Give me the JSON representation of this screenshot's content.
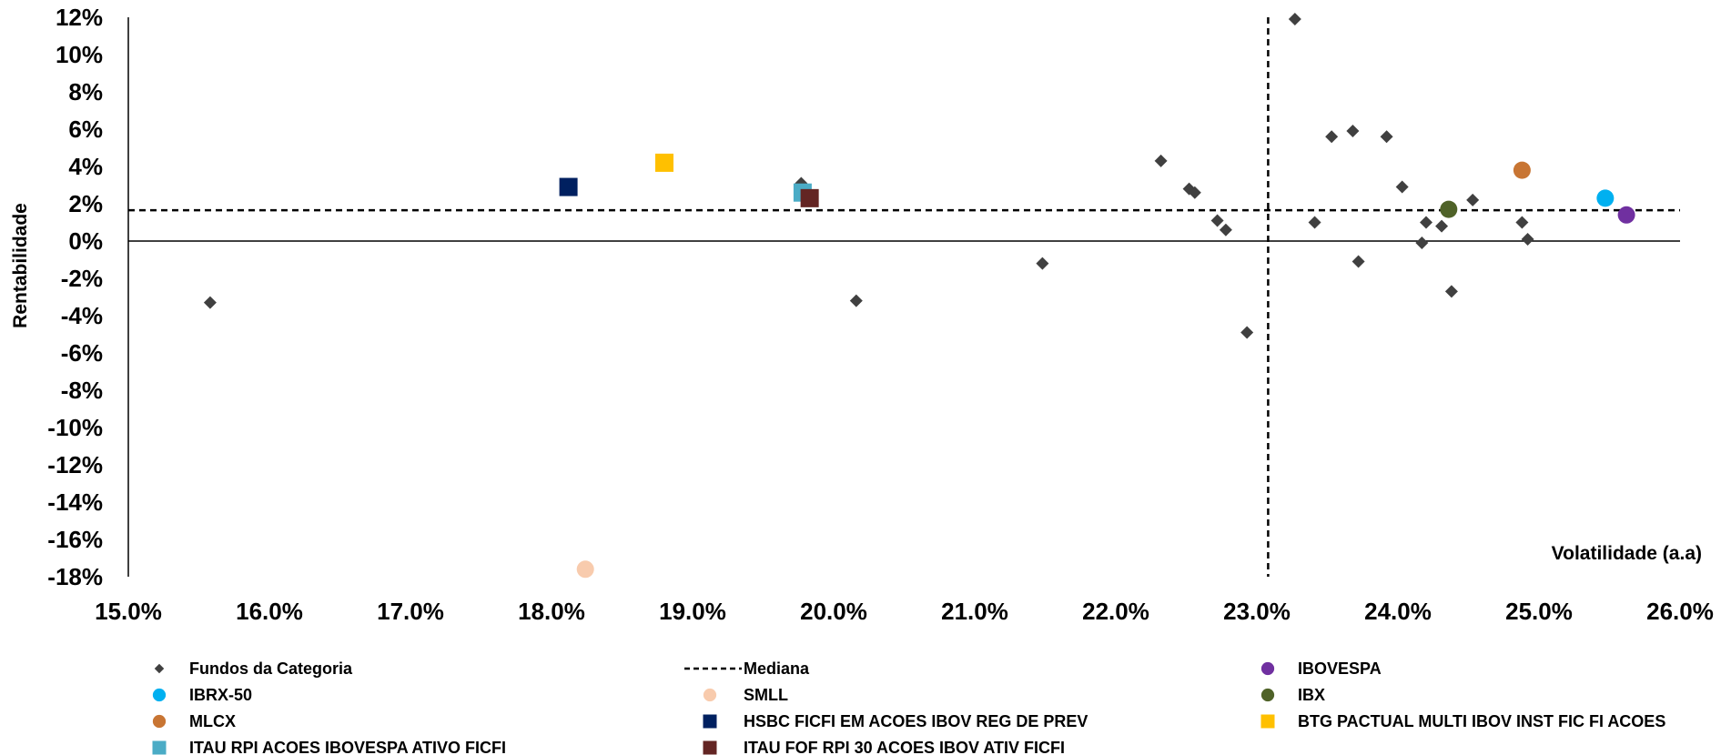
{
  "chart_data": {
    "type": "scatter",
    "xlabel": "Volatilidade (a.a)",
    "ylabel": "Rentabilidade",
    "xlim": [
      15.0,
      26.0
    ],
    "ylim": [
      -18,
      12
    ],
    "x_ticks": [
      15,
      16,
      17,
      18,
      19,
      20,
      21,
      22,
      23,
      24,
      25,
      26
    ],
    "x_tick_labels": [
      "15.0%",
      "16.0%",
      "17.0%",
      "18.0%",
      "19.0%",
      "20.0%",
      "21.0%",
      "22.0%",
      "23.0%",
      "24.0%",
      "25.0%",
      "26.0%"
    ],
    "y_ticks": [
      12,
      10,
      8,
      6,
      4,
      2,
      0,
      -2,
      -4,
      -6,
      -8,
      -10,
      -12,
      -14,
      -16,
      -18
    ],
    "y_tick_labels": [
      "12%",
      "10%",
      "8%",
      "6%",
      "4%",
      "2%",
      "0%",
      "-2%",
      "-4%",
      "-6%",
      "-8%",
      "-10%",
      "-12%",
      "-14%",
      "-16%",
      "-18%"
    ],
    "median": {
      "name": "Mediana",
      "x": 23.08,
      "y": 1.65,
      "color": "#000000"
    },
    "series": [
      {
        "name": "Fundos da Categoria",
        "marker": "diamond",
        "color": "#404040",
        "points": [
          [
            15.58,
            -3.3
          ],
          [
            19.77,
            3.1
          ],
          [
            20.16,
            -3.2
          ],
          [
            21.48,
            -1.2
          ],
          [
            22.32,
            4.3
          ],
          [
            22.52,
            2.8
          ],
          [
            22.56,
            2.6
          ],
          [
            22.72,
            1.1
          ],
          [
            22.78,
            0.6
          ],
          [
            22.93,
            -4.9
          ],
          [
            23.27,
            11.9
          ],
          [
            23.41,
            1.0
          ],
          [
            23.53,
            5.6
          ],
          [
            23.68,
            5.9
          ],
          [
            23.72,
            -1.1
          ],
          [
            23.92,
            5.6
          ],
          [
            24.03,
            2.9
          ],
          [
            24.17,
            -0.1
          ],
          [
            24.2,
            1.0
          ],
          [
            24.31,
            0.8
          ],
          [
            24.38,
            -2.7
          ],
          [
            24.53,
            2.2
          ],
          [
            24.88,
            1.0
          ],
          [
            24.92,
            0.1
          ]
        ]
      },
      {
        "name": "IBOVESPA",
        "marker": "circle",
        "color": "#7030A0",
        "points": [
          [
            25.62,
            1.4
          ]
        ]
      },
      {
        "name": "IBRX-50",
        "marker": "circle",
        "color": "#00B0F0",
        "points": [
          [
            25.47,
            2.3
          ]
        ]
      },
      {
        "name": "SMLL",
        "marker": "circle",
        "color": "#F8CBAD",
        "points": [
          [
            18.24,
            -17.6
          ]
        ]
      },
      {
        "name": "IBX",
        "marker": "circle",
        "color": "#4F6228",
        "points": [
          [
            24.36,
            1.7
          ]
        ]
      },
      {
        "name": "MLCX",
        "marker": "circle",
        "color": "#C87533",
        "points": [
          [
            24.88,
            3.8
          ]
        ]
      },
      {
        "name": "HSBC FICFI EM ACOES IBOV REG DE PREV",
        "marker": "square",
        "color": "#002060",
        "points": [
          [
            18.12,
            2.9
          ]
        ]
      },
      {
        "name": "BTG PACTUAL MULTI IBOV INST FIC FI ACOES",
        "marker": "square",
        "color": "#FFC000",
        "points": [
          [
            18.8,
            4.2
          ]
        ]
      },
      {
        "name": "ITAU RPI ACOES IBOVESPA ATIVO FICFI",
        "marker": "square",
        "color": "#4BACC6",
        "points": [
          [
            19.78,
            2.6
          ]
        ]
      },
      {
        "name": "ITAU FOF RPI 30 ACOES IBOV ATIV FICFI",
        "marker": "square",
        "color": "#632523",
        "points": [
          [
            19.83,
            2.3
          ]
        ]
      }
    ],
    "legend": {
      "placement": "bottom",
      "entries": [
        {
          "label": "Fundos da Categoria",
          "marker": "diamond",
          "color": "#404040"
        },
        {
          "label": "Mediana",
          "marker": "dash",
          "color": "#000000"
        },
        {
          "label": "IBOVESPA",
          "marker": "circle",
          "color": "#7030A0"
        },
        {
          "label": "IBRX-50",
          "marker": "circle",
          "color": "#00B0F0"
        },
        {
          "label": "SMLL",
          "marker": "circle",
          "color": "#F8CBAD"
        },
        {
          "label": "IBX",
          "marker": "circle",
          "color": "#4F6228"
        },
        {
          "label": "MLCX",
          "marker": "circle",
          "color": "#C87533"
        },
        {
          "label": "HSBC FICFI EM ACOES IBOV REG DE PREV",
          "marker": "square",
          "color": "#002060"
        },
        {
          "label": "BTG PACTUAL MULTI IBOV INST FIC FI ACOES",
          "marker": "square",
          "color": "#FFC000"
        },
        {
          "label": "ITAU RPI ACOES IBOVESPA ATIVO FICFI",
          "marker": "square",
          "color": "#4BACC6"
        },
        {
          "label": "ITAU FOF RPI 30 ACOES IBOV ATIV FICFI",
          "marker": "square",
          "color": "#632523"
        }
      ]
    },
    "grid": false
  }
}
